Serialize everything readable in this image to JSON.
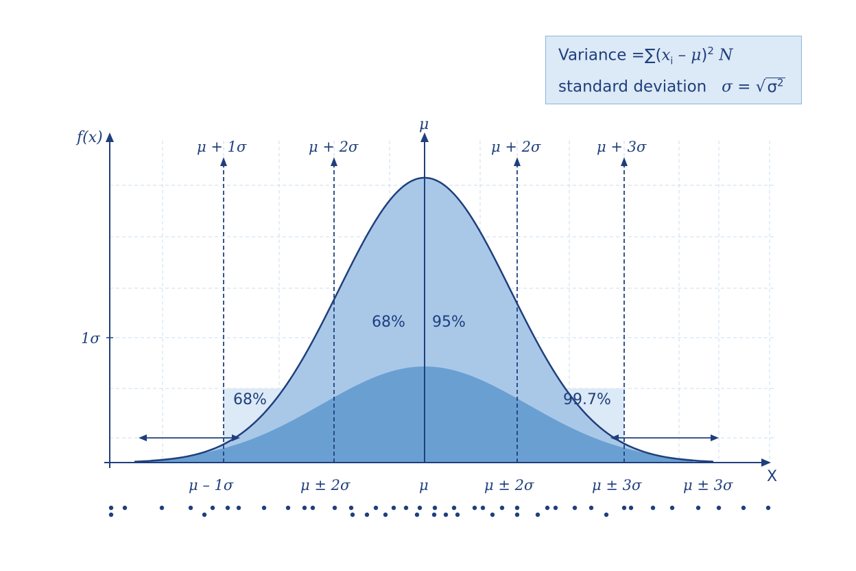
{
  "formula": {
    "variance_label": "Variance",
    "equals": "=",
    "sigma_sum": "∑",
    "open_paren": "(",
    "x": "x",
    "x_sub": "i",
    "minus_mu": " – μ",
    "close_paren": ")",
    "squared": "2",
    "n": "N",
    "sd_label": "standard deviation",
    "sigma": "σ",
    "sqrt_sign": "√",
    "sigma_sq_base": "σ",
    "sigma_sq_exp": "2"
  },
  "axes": {
    "y_label": "f(x)",
    "x_label": "X",
    "mu_axis_label": "μ",
    "y_tick_label": "1σ"
  },
  "top_labels": [
    "μ + 1σ",
    "μ + 2σ",
    "μ + 2σ",
    "μ + 3σ"
  ],
  "bottom_labels": [
    "μ – 1σ",
    "μ ± 2σ",
    "μ",
    "μ ± 2σ",
    "μ ± 3σ",
    "μ ± 3σ"
  ],
  "region_labels": {
    "inner_left": "68%",
    "inner_right": "95%",
    "band_left": "68%",
    "band_right": "99.7%"
  },
  "colors": {
    "axis": "#1f3f7c",
    "curve_outer": "#a9c8e8",
    "curve_inner": "#6a9fd2",
    "band": "#dce9f6",
    "grid": "#c9dcef",
    "text": "#1f3f7c"
  }
}
